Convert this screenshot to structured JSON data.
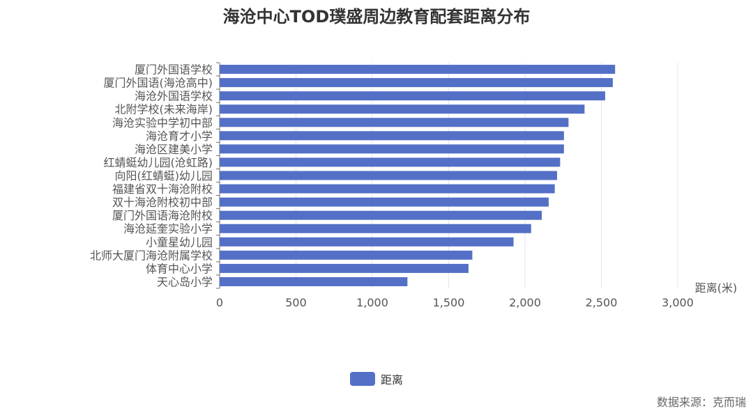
{
  "chart_data": {
    "type": "bar",
    "orientation": "horizontal",
    "title": "海沧中心TOD璞盛周边教育配套距离分布",
    "xlabel": "距离(米)",
    "ylabel": "",
    "xlim": [
      0,
      3000
    ],
    "xticks": [
      "0",
      "500",
      "1,000",
      "1,500",
      "2,000",
      "2,500",
      "3,000"
    ],
    "grid": true,
    "legend_position": "bottom",
    "categories": [
      "厦门外国语学校",
      "厦门外国语(海沧高中)",
      "海沧外国语学校",
      "北附学校(未来海岸)",
      "海沧实验中学初中部",
      "海沧育才小学",
      "海沧区建美小学",
      "红蜻蜓幼儿园(沧虹路)",
      "向阳(红蜻蜓)幼儿园",
      "福建省双十海沧附校",
      "双十海沧附校初中部",
      "厦门外国语海沧附校",
      "海沧延奎实验小学",
      "小童星幼儿园",
      "北师大厦门海沧附属学校",
      "体育中心小学",
      "天心岛小学"
    ],
    "series": [
      {
        "name": "距离",
        "color": "#5470c6",
        "values": [
          2590,
          2575,
          2525,
          2390,
          2285,
          2255,
          2255,
          2230,
          2210,
          2195,
          2155,
          2110,
          2040,
          1925,
          1655,
          1630,
          1230
        ]
      }
    ]
  },
  "source": "数据来源：克而瑞"
}
